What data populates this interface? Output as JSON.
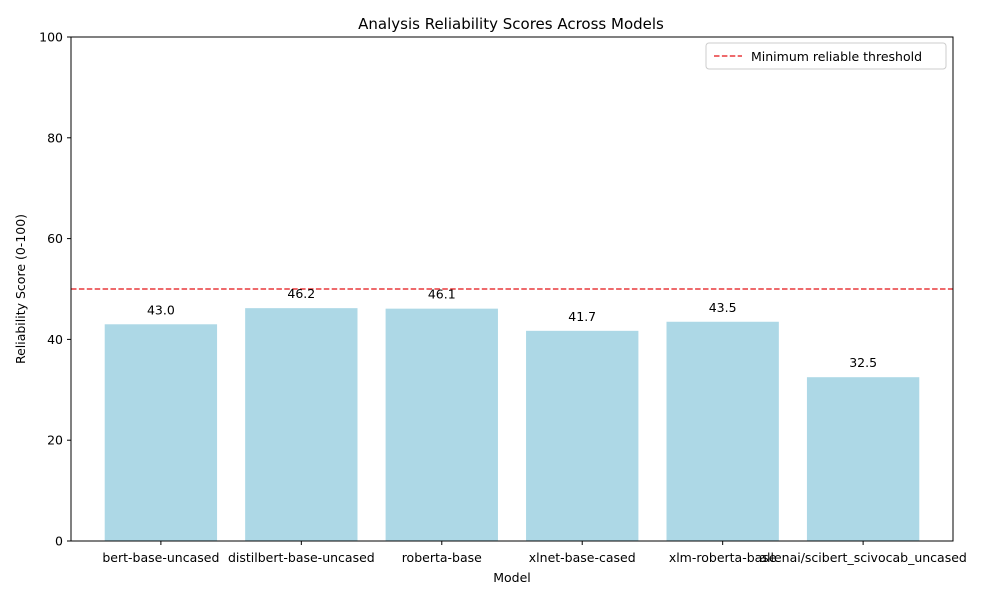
{
  "chart_data": {
    "type": "bar",
    "title": "Analysis Reliability Scores Across Models",
    "xlabel": "Model",
    "ylabel": "Reliability Score (0-100)",
    "ylim": [
      0,
      100
    ],
    "yticks": [
      0,
      20,
      40,
      60,
      80,
      100
    ],
    "categories": [
      "bert-base-uncased",
      "distilbert-base-uncased",
      "roberta-base",
      "xlnet-base-cased",
      "xlm-roberta-base",
      "allenai/scibert_scivocab_uncased"
    ],
    "values": [
      43.0,
      46.2,
      46.1,
      41.7,
      43.5,
      32.5
    ],
    "data_labels": [
      "43.0",
      "46.2",
      "46.1",
      "41.7",
      "43.5",
      "32.5"
    ],
    "bar_color": "#add8e6",
    "threshold": {
      "value": 50,
      "label": "Minimum reliable threshold",
      "color": "#e8393b",
      "style": "dashed"
    },
    "grid": false,
    "legend_position": "top-right"
  }
}
